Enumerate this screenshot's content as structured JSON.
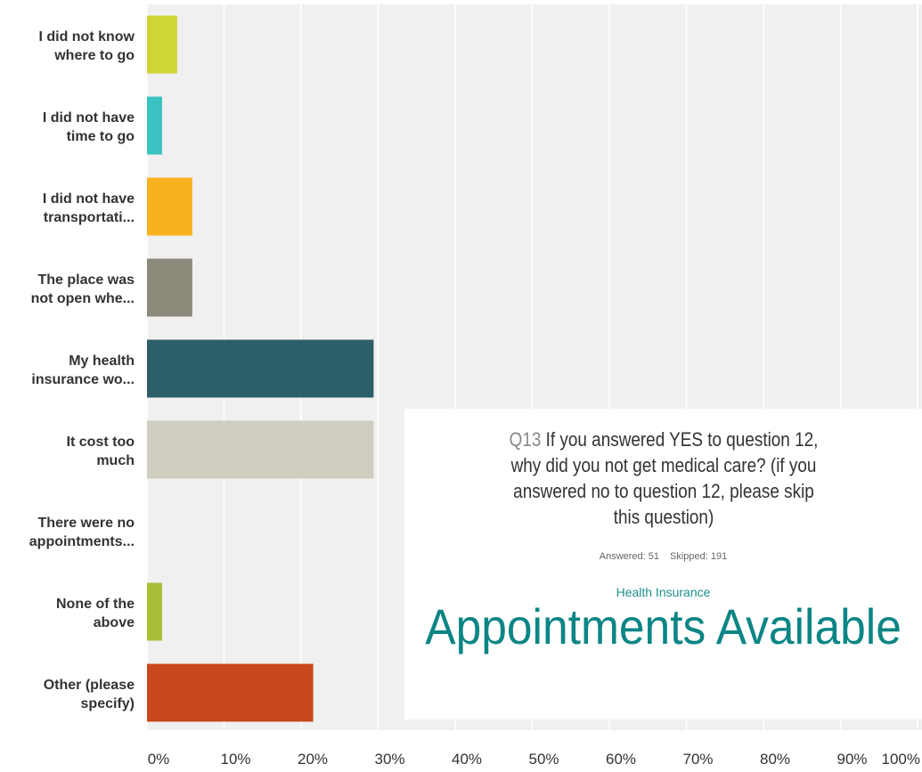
{
  "chart_data": {
    "type": "bar",
    "orientation": "horizontal",
    "categories": [
      "I did not know where to go",
      "I did not have time to go",
      "I did not have transportati...",
      "The place was not open whe...",
      "My health insurance wo...",
      "It cost too much",
      "There were no appointments...",
      "None of the above",
      "Other (please specify)"
    ],
    "category_lines": [
      [
        "I did not know",
        "where to go"
      ],
      [
        "I did not have",
        "time to go"
      ],
      [
        "I did not have",
        "transportati..."
      ],
      [
        "The place was",
        "not open whe..."
      ],
      [
        "My health",
        "insurance wo..."
      ],
      [
        "It cost too",
        "much"
      ],
      [
        "There were no",
        "appointments..."
      ],
      [
        "None of the",
        "above"
      ],
      [
        "Other (please",
        "specify)"
      ]
    ],
    "values": [
      3.92,
      1.96,
      5.88,
      5.88,
      29.41,
      29.41,
      0,
      1.96,
      21.57
    ],
    "colors": [
      "#cfd536",
      "#3ac2c0",
      "#f8b21f",
      "#8c8b7b",
      "#2d5f6b",
      "#cfcdc0",
      "#cccccc",
      "#a9be39",
      "#c8481d"
    ],
    "xlim": [
      0,
      100
    ],
    "xticks": [
      "0%",
      "10%",
      "20%",
      "30%",
      "40%",
      "50%",
      "60%",
      "70%",
      "80%",
      "90%",
      "100%"
    ],
    "grid": true
  },
  "card": {
    "q_num": "Q13",
    "question": "If you answered YES to question 12, why did you not get medical care? (if you answered no to question 12, please skip this question)",
    "answered": "Answered: 51",
    "skipped": "Skipped: 191",
    "subtitle": "Health Insurance",
    "big_text": "Appointments Available"
  }
}
